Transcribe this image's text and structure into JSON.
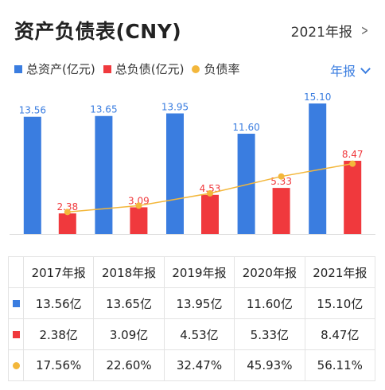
{
  "header": {
    "title": "资产负债表(CNY)",
    "period_label": "2021年报"
  },
  "legend": {
    "assets": "总资产(亿元)",
    "liabilities": "总负债(亿元)",
    "ratio": "负债率"
  },
  "frequency_label": "年报",
  "colors": {
    "assets": "#3a7de0",
    "liabilities": "#f0393d",
    "ratio": "#f3b73b"
  },
  "chart_data": {
    "type": "bar",
    "categories": [
      "2017年报",
      "2018年报",
      "2019年报",
      "2020年报",
      "2021年报"
    ],
    "series": [
      {
        "name": "总资产(亿元)",
        "values": [
          13.56,
          13.65,
          13.95,
          11.6,
          15.1
        ],
        "labels": [
          "13.56",
          "13.65",
          "13.95",
          "11.60",
          "15.10"
        ]
      },
      {
        "name": "总负债(亿元)",
        "values": [
          2.38,
          3.09,
          4.53,
          5.33,
          8.47
        ],
        "labels": [
          "2.38",
          "3.09",
          "4.53",
          "5.33",
          "8.47"
        ]
      },
      {
        "name": "负债率",
        "type": "line",
        "values": [
          17.56,
          22.6,
          32.47,
          45.93,
          56.11
        ]
      }
    ],
    "title": "资产负债表(CNY)",
    "xlabel": "",
    "ylabel": "",
    "ylim": [
      0,
      15.1
    ],
    "grid": false
  },
  "table": {
    "headers": [
      "2017年报",
      "2018年报",
      "2019年报",
      "2020年报",
      "2021年报"
    ],
    "rows": [
      {
        "key": "assets",
        "cells": [
          "13.56亿",
          "13.65亿",
          "13.95亿",
          "11.60亿",
          "15.10亿"
        ]
      },
      {
        "key": "liabilities",
        "cells": [
          "2.38亿",
          "3.09亿",
          "4.53亿",
          "5.33亿",
          "8.47亿"
        ]
      },
      {
        "key": "ratio",
        "cells": [
          "17.56%",
          "22.60%",
          "32.47%",
          "45.93%",
          "56.11%"
        ]
      }
    ]
  }
}
